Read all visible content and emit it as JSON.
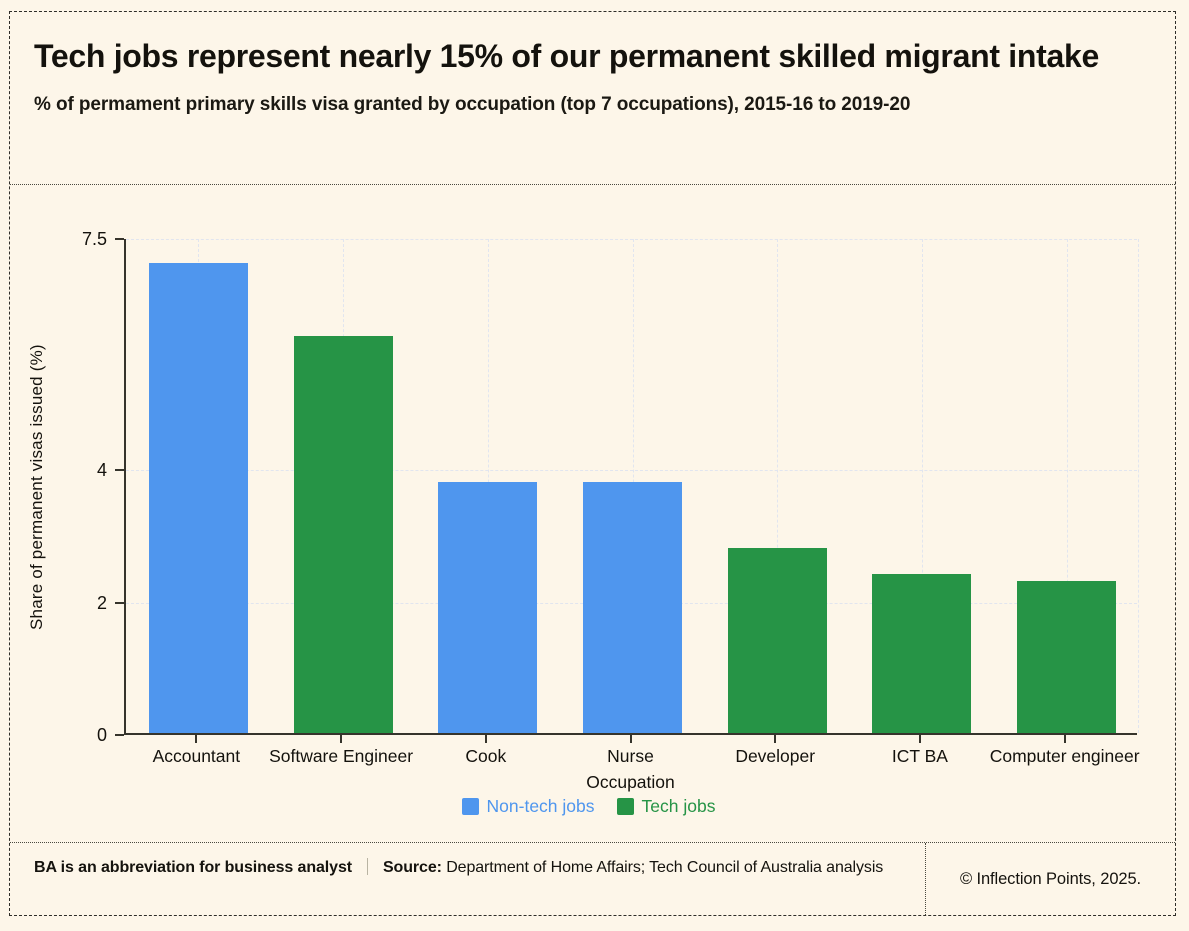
{
  "header": {
    "title": "Tech jobs represent nearly 15% of our permanent skilled migrant intake",
    "subtitle": "% of permament primary skills visa granted by occupation (top 7 occupations), 2015-16 to 2019-20"
  },
  "chart_data": {
    "type": "bar",
    "categories": [
      "Accountant",
      "Software Engineer",
      "Cook",
      "Nurse",
      "Developer",
      "ICT BA",
      "Computer engineer"
    ],
    "values": [
      7.1,
      6.0,
      3.8,
      3.8,
      2.8,
      2.4,
      2.3
    ],
    "groups": [
      "Non-tech jobs",
      "Tech jobs",
      "Non-tech jobs",
      "Non-tech jobs",
      "Tech jobs",
      "Tech jobs",
      "Tech jobs"
    ],
    "xlabel": "Occupation",
    "ylabel": "Share of permanent visas issued (%)",
    "ylim": [
      0,
      7.5
    ],
    "yticks": [
      0,
      2,
      4,
      7.5
    ],
    "grid": true,
    "legend_position": "bottom",
    "legend": [
      {
        "label": "Non-tech jobs",
        "color": "#4f96ee"
      },
      {
        "label": "Tech jobs",
        "color": "#269446"
      }
    ]
  },
  "footer": {
    "note": "BA is an abbreviation for business analyst",
    "source_label": "Source:",
    "source_text": " Department of Home Affairs; Tech Council of Australia analysis",
    "copyright": "© Inflection Points, 2025."
  },
  "colors": {
    "background": "#fdf6e9",
    "non_tech_blue": "#4f96ee",
    "tech_green": "#269446",
    "gridline": "#e1e5ef",
    "axis": "#36342c",
    "text": "#14120d"
  }
}
